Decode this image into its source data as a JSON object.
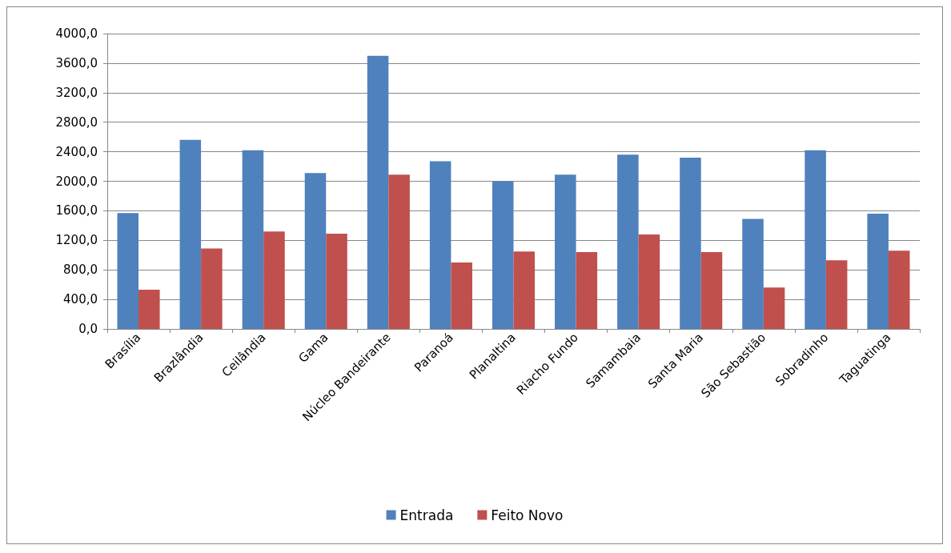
{
  "chart_data": {
    "type": "bar",
    "categories": [
      "Brasília",
      "Brazlândia",
      "Ceilândia",
      "Gama",
      "Núcleo Bandeirante",
      "Paranoá",
      "Planaltina",
      "Riacho Fundo",
      "Samambaia",
      "Santa Maria",
      "São Sebastião",
      "Sobradinho",
      "Taguatinga"
    ],
    "series": [
      {
        "name": "Entrada",
        "color": "#4f81bd",
        "values": [
          1570,
          2560,
          2420,
          2110,
          3700,
          2270,
          2000,
          2090,
          2360,
          2320,
          1490,
          2420,
          1560
        ]
      },
      {
        "name": "Feito Novo",
        "color": "#c0504d",
        "values": [
          530,
          1090,
          1320,
          1290,
          2090,
          900,
          1050,
          1040,
          1280,
          1040,
          560,
          930,
          1060
        ]
      }
    ],
    "ylim": [
      0,
      4000
    ],
    "yticks": [
      {
        "value": 0,
        "label": "0,0"
      },
      {
        "value": 400,
        "label": "400,0"
      },
      {
        "value": 800,
        "label": "800,0"
      },
      {
        "value": 1200,
        "label": "1200,0"
      },
      {
        "value": 1600,
        "label": "1600,0"
      },
      {
        "value": 2000,
        "label": "2000,0"
      },
      {
        "value": 2400,
        "label": "2400,0"
      },
      {
        "value": 2800,
        "label": "2800,0"
      },
      {
        "value": 3200,
        "label": "3200,0"
      },
      {
        "value": 3600,
        "label": "3600,0"
      },
      {
        "value": 4000,
        "label": "4000,0"
      }
    ],
    "grid": "y",
    "legend": "bottom"
  }
}
